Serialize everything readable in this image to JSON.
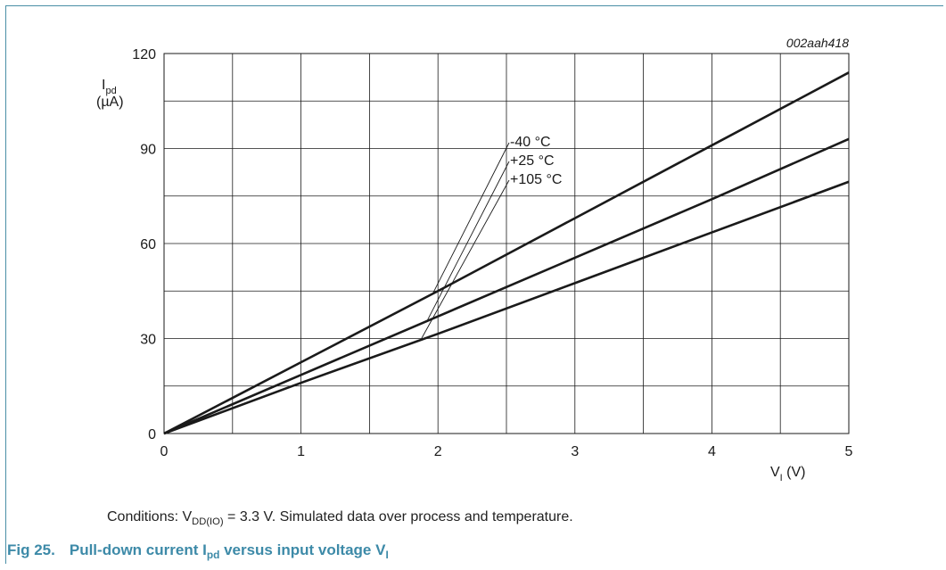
{
  "figure_id": "002aah418",
  "conditions": {
    "prefix": "Conditions: V",
    "sub": "DD(IO)",
    "suffix": " = 3.3 V. Simulated data over process and temperature."
  },
  "caption": {
    "number": "Fig 25.",
    "part1": "Pull-down current I",
    "sub1": "pd",
    "part2": " versus input voltage V",
    "sub2": "I"
  },
  "colors": {
    "accent": "#3d8aa8",
    "frame": "#4a8fa6",
    "line": "#1a1a1a",
    "grid": "#1a1a1a"
  },
  "chart_data": {
    "type": "line",
    "ylabel": {
      "main": "I",
      "sub": "pd",
      "unit": "(µA)"
    },
    "xlabel": {
      "main": "V",
      "sub": "I",
      "unit": " (V)"
    },
    "xlim": [
      0,
      5
    ],
    "ylim": [
      0,
      120
    ],
    "x_ticks": [
      0,
      1,
      2,
      3,
      4,
      5
    ],
    "x_tick_labels": [
      "0",
      "1",
      "2",
      "3",
      "4",
      "5"
    ],
    "y_ticks": [
      0,
      30,
      60,
      90,
      120
    ],
    "y_tick_labels": [
      "0",
      "30",
      "60",
      "90",
      "120"
    ],
    "x_grid_step": 0.5,
    "y_grid_step": 15,
    "grid": true,
    "legend": "callout labels near middle",
    "series": [
      {
        "name": "-40 °C",
        "x": [
          0,
          1,
          2,
          3,
          4,
          5
        ],
        "values": [
          0,
          22.5,
          45,
          68,
          91,
          114
        ]
      },
      {
        "name": "+25 °C",
        "x": [
          0,
          1,
          2,
          3,
          4,
          5
        ],
        "values": [
          0,
          18.5,
          37,
          55.5,
          74,
          93
        ]
      },
      {
        "name": "+105 °C",
        "x": [
          0,
          1,
          2,
          3,
          4,
          5
        ],
        "values": [
          0,
          16,
          31.5,
          47.5,
          63.5,
          79.5
        ]
      }
    ],
    "callouts": [
      {
        "label": "-40 °C",
        "anchor_x": 1.96,
        "anchor_y": 44
      },
      {
        "label": "+25 °C",
        "anchor_x": 1.92,
        "anchor_y": 35.5
      },
      {
        "label": "+105 °C",
        "anchor_x": 1.88,
        "anchor_y": 30
      }
    ]
  }
}
